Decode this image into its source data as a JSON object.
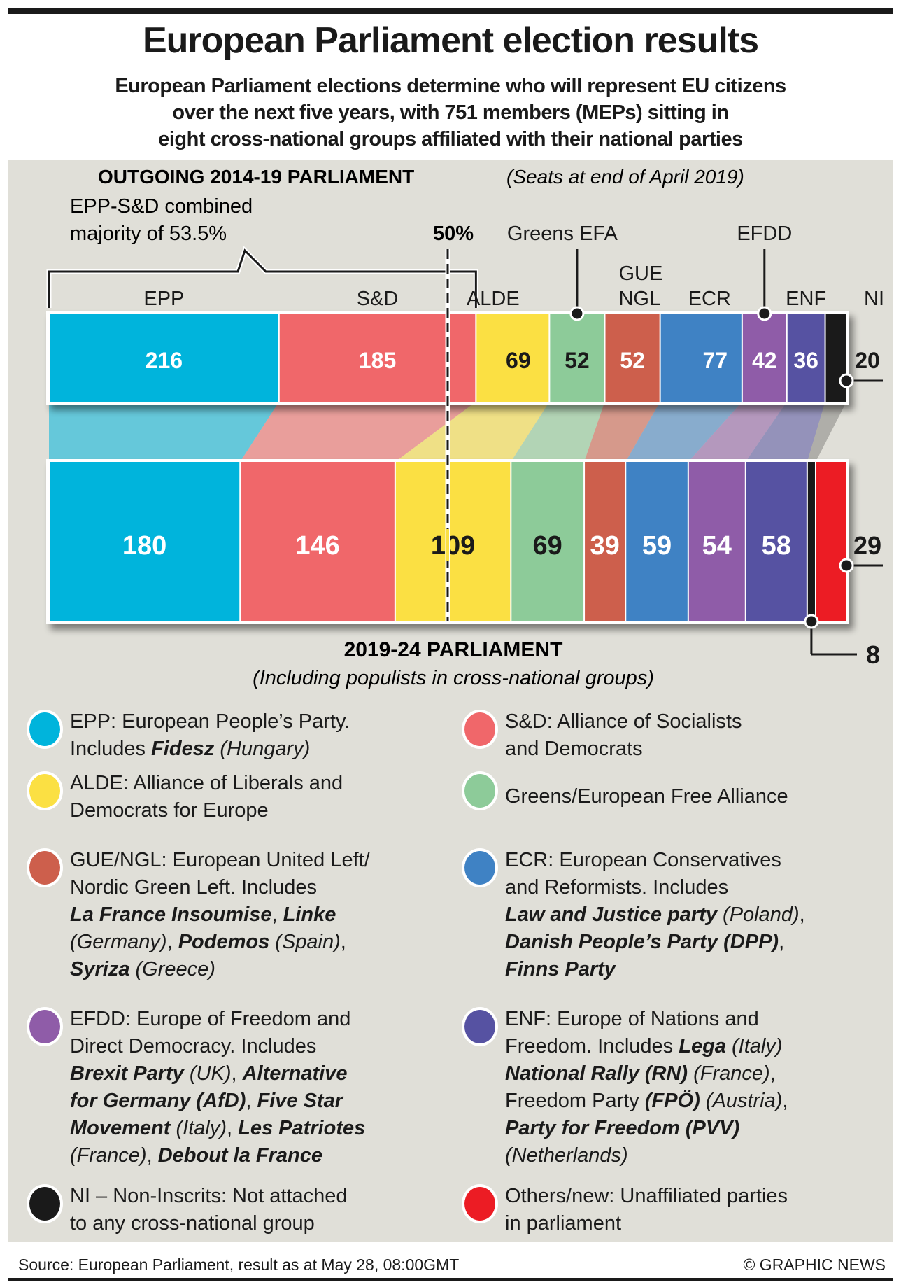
{
  "header": {
    "title": "European Parliament election results",
    "subtitle": "European Parliament elections determine who will represent EU citizens over the next five years, with 751 members (MEPs) sitting in eight cross-national groups affiliated with their national parties",
    "subtitle_lines": [
      "European Parliament elections determine who will represent EU citizens",
      "over the next five years, with 751 members (MEPs) sitting in",
      "eight cross-national groups affiliated with their national parties"
    ]
  },
  "chart_data": {
    "type": "bar",
    "subtype": "stacked-horizontal-100",
    "total_seats": 751,
    "majority_line": {
      "label": "50%",
      "value": 0.5
    },
    "outgoing": {
      "title": "OUTGOING 2014-19 PARLIAMENT",
      "subtitle": "(Seats at end of April 2019)",
      "annotation": [
        "EPP-S&D combined",
        "majority of 53.5%"
      ],
      "groups": [
        {
          "key": "EPP",
          "label": "EPP",
          "seats": 216,
          "color": "#00b4dc",
          "text_color": "#ffffff"
        },
        {
          "key": "SD",
          "label": "S&D",
          "seats": 185,
          "color": "#f0676a",
          "text_color": "#ffffff"
        },
        {
          "key": "ALDE",
          "label": "ALDE",
          "seats": 69,
          "color": "#fbe043",
          "text_color": "#1a1a1a"
        },
        {
          "key": "GREENS",
          "label": "Greens EFA",
          "seats": 52,
          "color": "#8dcb99",
          "text_color": "#1a1a1a"
        },
        {
          "key": "GUE",
          "label": "GUE NGL",
          "seats": 52,
          "color": "#cd5f4c",
          "text_color": "#ffffff"
        },
        {
          "key": "ECR",
          "label": "ECR",
          "seats": 77,
          "color": "#3f82c4",
          "text_color": "#ffffff"
        },
        {
          "key": "EFDD",
          "label": "EFDD",
          "seats": 42,
          "color": "#8f5ca8",
          "text_color": "#ffffff"
        },
        {
          "key": "ENF",
          "label": "ENF",
          "seats": 36,
          "color": "#5652a2",
          "text_color": "#ffffff"
        },
        {
          "key": "NI",
          "label": "NI",
          "seats": 20,
          "color": "#1a1a1a",
          "text_color": "#1a1a1a"
        }
      ]
    },
    "new": {
      "title": "2019-24 PARLIAMENT",
      "subtitle": "(Including populists in cross-national groups)",
      "groups": [
        {
          "key": "EPP",
          "seats": 180,
          "color": "#00b4dc",
          "text_color": "#ffffff"
        },
        {
          "key": "SD",
          "seats": 146,
          "color": "#f0676a",
          "text_color": "#ffffff"
        },
        {
          "key": "ALDE",
          "seats": 109,
          "color": "#fbe043",
          "text_color": "#1a1a1a"
        },
        {
          "key": "GREENS",
          "seats": 69,
          "color": "#8dcb99",
          "text_color": "#1a1a1a"
        },
        {
          "key": "GUE",
          "seats": 39,
          "color": "#cd5f4c",
          "text_color": "#ffffff"
        },
        {
          "key": "ECR",
          "seats": 59,
          "color": "#3f82c4",
          "text_color": "#ffffff"
        },
        {
          "key": "EFDD",
          "seats": 54,
          "color": "#8f5ca8",
          "text_color": "#ffffff"
        },
        {
          "key": "ENF",
          "seats": 58,
          "color": "#5652a2",
          "text_color": "#ffffff"
        },
        {
          "key": "NI",
          "seats": 8,
          "color": "#1a1a1a",
          "text_color": "#1a1a1a"
        },
        {
          "key": "OTHERS",
          "seats": 29,
          "color": "#ec1c24",
          "text_color": "#1a1a1a"
        }
      ]
    }
  },
  "legend": [
    {
      "color": "#00b4dc",
      "lines": [
        [
          [
            "b",
            "EPP:"
          ],
          [
            "n",
            " European People’s Party."
          ]
        ],
        [
          [
            "n",
            "Includes "
          ],
          [
            "bi",
            "Fidesz"
          ],
          [
            "i",
            " (Hungary)"
          ]
        ]
      ]
    },
    {
      "color": "#f0676a",
      "lines": [
        [
          [
            "b",
            "S&D:"
          ],
          [
            "n",
            " Alliance of Socialists"
          ]
        ],
        [
          [
            "n",
            "and Democrats"
          ]
        ]
      ]
    },
    {
      "color": "#fbe043",
      "lines": [
        [
          [
            "b",
            "ALDE:"
          ],
          [
            "n",
            " Alliance of Liberals and"
          ]
        ],
        [
          [
            "n",
            "Democrats for Europe"
          ]
        ]
      ]
    },
    {
      "color": "#8dcb99",
      "lines": [
        [
          [
            "b",
            "Greens/European Free Alliance"
          ]
        ]
      ]
    },
    {
      "color": "#cd5f4c",
      "lines": [
        [
          [
            "b",
            "GUE/NGL:"
          ],
          [
            "n",
            " European United Left/"
          ]
        ],
        [
          [
            "n",
            "Nordic Green Left. Includes"
          ]
        ],
        [
          [
            "bi",
            "La France Insoumise"
          ],
          [
            "n",
            ", "
          ],
          [
            "bi",
            "Linke"
          ]
        ],
        [
          [
            "i",
            "(Germany)"
          ],
          [
            "n",
            ", "
          ],
          [
            "bi",
            "Podemos"
          ],
          [
            "i",
            " (Spain)"
          ],
          [
            "n",
            ","
          ]
        ],
        [
          [
            "bi",
            "Syriza"
          ],
          [
            "i",
            " (Greece)"
          ]
        ]
      ]
    },
    {
      "color": "#3f82c4",
      "lines": [
        [
          [
            "b",
            "ECR:"
          ],
          [
            "n",
            " European Conservatives"
          ]
        ],
        [
          [
            "n",
            "and Reformists. Includes"
          ]
        ],
        [
          [
            "bi",
            "Law and Justice party"
          ],
          [
            "i",
            " (Poland)"
          ],
          [
            "n",
            ","
          ]
        ],
        [
          [
            "bi",
            "Danish People’s Party (DPP)"
          ],
          [
            "n",
            ","
          ]
        ],
        [
          [
            "bi",
            "Finns Party"
          ]
        ]
      ]
    },
    {
      "color": "#8f5ca8",
      "lines": [
        [
          [
            "b",
            "EFDD:"
          ],
          [
            "n",
            " Europe of Freedom and"
          ]
        ],
        [
          [
            "n",
            "Direct Democracy. Includes"
          ]
        ],
        [
          [
            "bi",
            "Brexit Party"
          ],
          [
            "i",
            " (UK)"
          ],
          [
            "n",
            ", "
          ],
          [
            "bi",
            "Alternative"
          ]
        ],
        [
          [
            "bi",
            "for Germany (AfD)"
          ],
          [
            "n",
            ", "
          ],
          [
            "bi",
            "Five Star"
          ]
        ],
        [
          [
            "bi",
            "Movement"
          ],
          [
            "i",
            " (Italy)"
          ],
          [
            "n",
            ", "
          ],
          [
            "bi",
            "Les Patriotes"
          ]
        ],
        [
          [
            "i",
            "(France)"
          ],
          [
            "n",
            ", "
          ],
          [
            "bi",
            "Debout la France"
          ]
        ]
      ]
    },
    {
      "color": "#5652a2",
      "lines": [
        [
          [
            "b",
            "ENF:"
          ],
          [
            "n",
            " Europe of Nations and"
          ]
        ],
        [
          [
            "n",
            "Freedom. Includes "
          ],
          [
            "bi",
            "Lega"
          ],
          [
            "i",
            " (Italy)"
          ]
        ],
        [
          [
            "bi",
            "National Rally (RN)"
          ],
          [
            "i",
            " (France)"
          ],
          [
            "n",
            ","
          ]
        ],
        [
          [
            "b",
            "Freedom Party "
          ],
          [
            "bi",
            "(FPÖ)"
          ],
          [
            "i",
            " (Austria)"
          ],
          [
            "n",
            ","
          ]
        ],
        [
          [
            "bi",
            "Party for Freedom (PVV)"
          ]
        ],
        [
          [
            "i",
            "(Netherlands)"
          ]
        ]
      ]
    },
    {
      "color": "#1a1a1a",
      "lines": [
        [
          [
            "b",
            "NI – Non-Inscrits:"
          ],
          [
            "n",
            " Not attached"
          ]
        ],
        [
          [
            "n",
            "to any cross-national group"
          ]
        ]
      ]
    },
    {
      "color": "#ec1c24",
      "lines": [
        [
          [
            "b",
            "Others/new:"
          ],
          [
            "n",
            " Unaffiliated parties"
          ]
        ],
        [
          [
            "n",
            "in parliament"
          ]
        ]
      ]
    }
  ],
  "footer": {
    "source": "Source: European Parliament, result as at May 28, 08:00GMT",
    "credit": "© GRAPHIC NEWS"
  }
}
